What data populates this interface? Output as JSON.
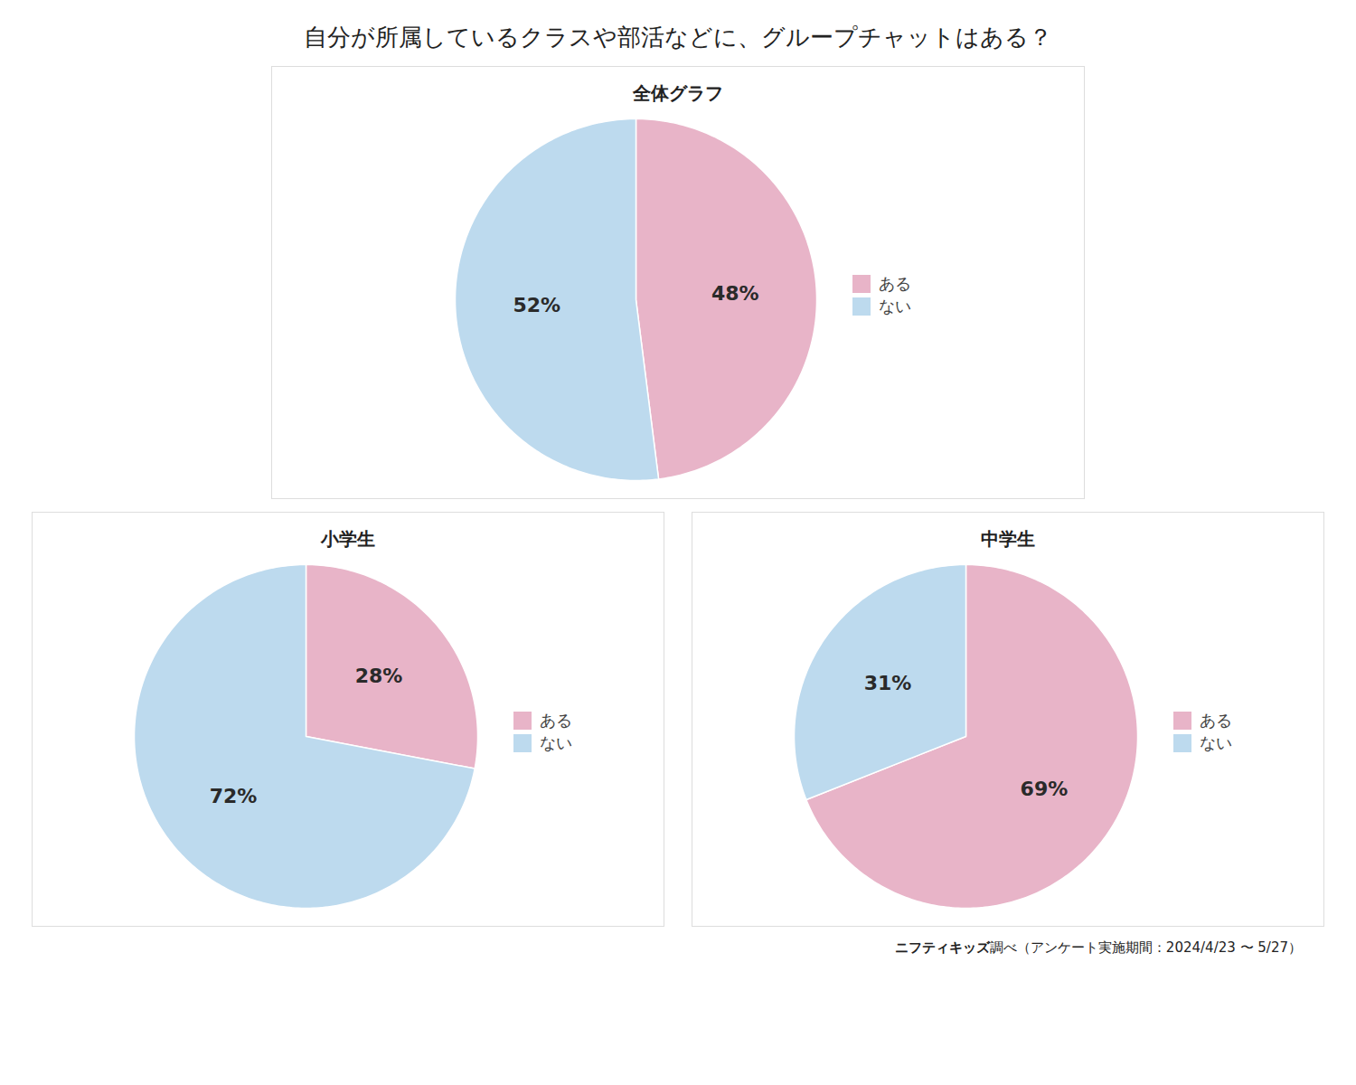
{
  "title": "自分が所属しているクラスや部活などに、グループチャットはある？",
  "annotations": [
    "ニフティキッズ",
    "調べ（アンケート実施期間：2024/4/23 〜 5/27）"
  ],
  "chart_data": [
    {
      "type": "pie",
      "title": "全体グラフ",
      "categories": [
        "ある",
        "ない"
      ],
      "values": [
        48,
        52
      ],
      "value_labels": [
        "48%",
        "52%"
      ],
      "colors": [
        "#E8B4C8",
        "#BDDAEE"
      ],
      "data_labels": true,
      "legend": "right"
    },
    {
      "type": "pie",
      "title": "小学生",
      "categories": [
        "ある",
        "ない"
      ],
      "values": [
        28,
        72
      ],
      "value_labels": [
        "28%",
        "72%"
      ],
      "colors": [
        "#E8B4C8",
        "#BDDAEE"
      ],
      "data_labels": true,
      "legend": "right"
    },
    {
      "type": "pie",
      "title": "中学生",
      "categories": [
        "ある",
        "ない"
      ],
      "values": [
        69,
        31
      ],
      "value_labels": [
        "69%",
        "31%"
      ],
      "colors": [
        "#E8B4C8",
        "#BDDAEE"
      ],
      "data_labels": true,
      "legend": "right"
    }
  ]
}
